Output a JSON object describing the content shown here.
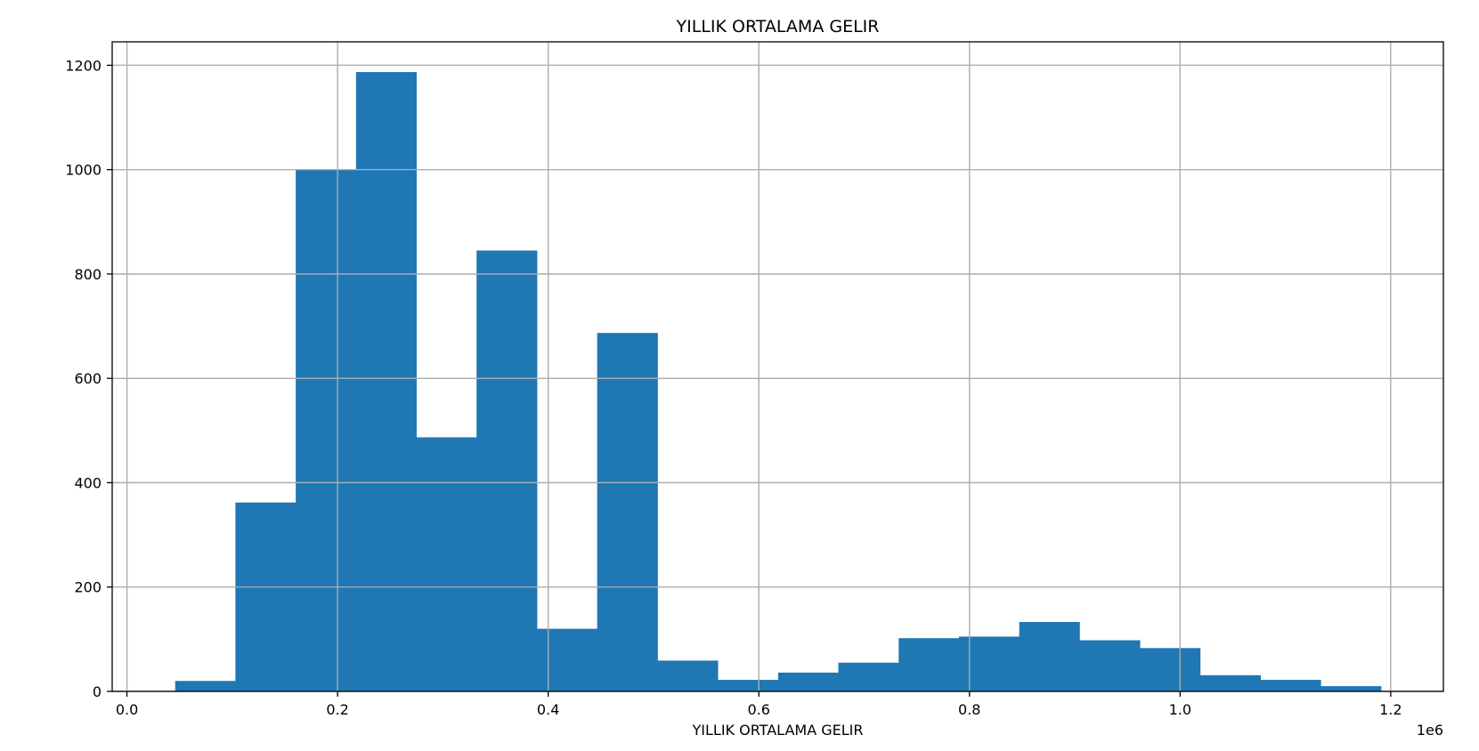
{
  "chart_data": {
    "type": "bar",
    "title": "YILLIK ORTALAMA GELIR",
    "xlabel": "YILLIK ORTALAMA GELIR",
    "ylabel": "",
    "x_offset_label": "1e6",
    "xlim": [
      -0.014,
      1.25
    ],
    "ylim": [
      0,
      1245
    ],
    "grid": true,
    "bar_color": "#1f77b4",
    "grid_color": "#b0b0b0",
    "x_ticks": [
      0.0,
      0.2,
      0.4,
      0.6,
      0.8,
      1.0,
      1.2
    ],
    "x_tick_labels": [
      "0.0",
      "0.2",
      "0.4",
      "0.6",
      "0.8",
      "1.0",
      "1.2"
    ],
    "y_ticks": [
      0,
      200,
      400,
      600,
      800,
      1000,
      1200
    ],
    "y_tick_labels": [
      "0",
      "200",
      "400",
      "600",
      "800",
      "1000",
      "1200"
    ],
    "bin_edges": [
      0.0458,
      0.103,
      0.1603,
      0.2175,
      0.2748,
      0.332,
      0.3893,
      0.4465,
      0.5038,
      0.561,
      0.6183,
      0.6755,
      0.7328,
      0.79,
      0.8473,
      0.9045,
      0.9618,
      1.019,
      1.0763,
      1.1335,
      1.1908
    ],
    "values": [
      20,
      362,
      1000,
      1187,
      487,
      845,
      120,
      687,
      59,
      22,
      36,
      55,
      102,
      105,
      133,
      98,
      83,
      31,
      22,
      10
    ]
  }
}
